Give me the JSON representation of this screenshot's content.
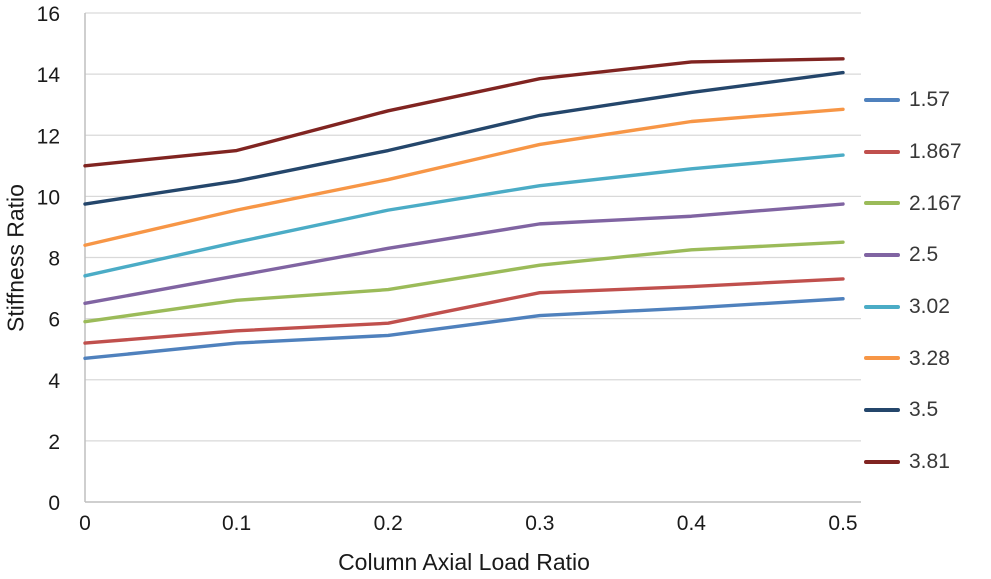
{
  "chart_data": {
    "type": "line",
    "title": "",
    "xlabel": "Column Axial Load Ratio",
    "ylabel": "Stiffness Ratio",
    "x": [
      0,
      0.1,
      0.2,
      0.3,
      0.4,
      0.5
    ],
    "x_tick_labels": [
      "0",
      "0.1",
      "0.2",
      "0.3",
      "0.4",
      "0.5"
    ],
    "y_ticks": [
      0,
      2,
      4,
      6,
      8,
      10,
      12,
      14,
      16
    ],
    "xlim": [
      0,
      0.5
    ],
    "ylim": [
      0,
      16
    ],
    "grid": "horizontal",
    "legend_position": "right",
    "series": [
      {
        "name": "1.57",
        "color": "#4F81BD",
        "values": [
          4.7,
          5.2,
          5.45,
          6.1,
          6.35,
          6.65
        ]
      },
      {
        "name": "1.867",
        "color": "#C0504D",
        "values": [
          5.2,
          5.6,
          5.85,
          6.85,
          7.05,
          7.3
        ]
      },
      {
        "name": "2.167",
        "color": "#9BBB59",
        "values": [
          5.9,
          6.6,
          6.95,
          7.75,
          8.25,
          8.5
        ]
      },
      {
        "name": "2.5",
        "color": "#8064A2",
        "values": [
          6.5,
          7.4,
          8.3,
          9.1,
          9.35,
          9.75
        ]
      },
      {
        "name": "3.02",
        "color": "#4BACC6",
        "values": [
          7.4,
          8.5,
          9.55,
          10.35,
          10.9,
          11.35
        ]
      },
      {
        "name": "3.28",
        "color": "#F79646",
        "values": [
          8.4,
          9.55,
          10.55,
          11.7,
          12.45,
          12.85
        ]
      },
      {
        "name": "3.5",
        "color": "#24466B",
        "values": [
          9.75,
          10.5,
          11.5,
          12.65,
          13.4,
          14.05
        ]
      },
      {
        "name": "3.81",
        "color": "#802421",
        "values": [
          11.0,
          11.5,
          12.8,
          13.85,
          14.4,
          14.5
        ]
      }
    ],
    "style": {
      "gridline_color": "#D9D9D9",
      "axis_line_color": "#BFBFBF",
      "tick_label_color": "#1a1a1a",
      "line_width": 3.4
    }
  }
}
